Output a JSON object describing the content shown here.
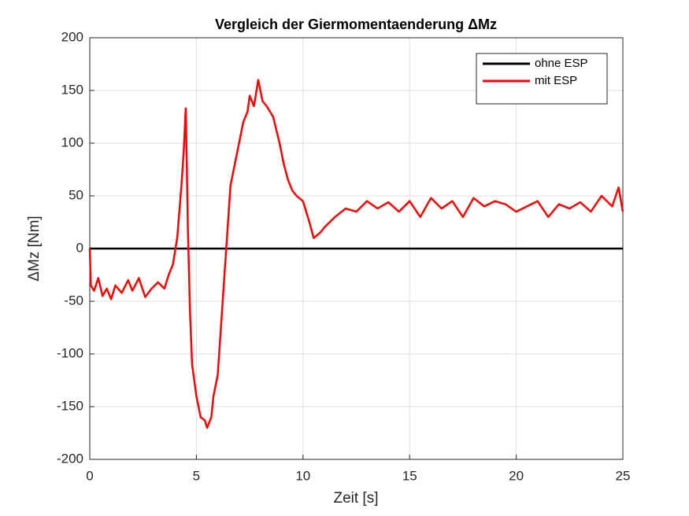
{
  "chart_data": {
    "type": "line",
    "title": "Vergleich der Giermomentaenderung ΔMz",
    "xlabel": "Zeit [s]",
    "ylabel": "ΔMz [Nm]",
    "xlim": [
      0,
      25
    ],
    "xticks": [
      0,
      5,
      10,
      15,
      20,
      25
    ],
    "ylim": [
      -200,
      200
    ],
    "yticks": [
      -200,
      -150,
      -100,
      -50,
      0,
      50,
      100,
      150,
      200
    ],
    "grid": true,
    "legend": "upper right",
    "series": [
      {
        "name": "ohne ESP",
        "color": "#000000",
        "x": [
          0,
          25
        ],
        "values": [
          0,
          0
        ]
      },
      {
        "name": "mit ESP",
        "color": "#ff0000",
        "x": [
          0,
          0.05,
          0.2,
          0.4,
          0.6,
          0.8,
          1.0,
          1.2,
          1.5,
          1.8,
          2.0,
          2.3,
          2.6,
          2.9,
          3.2,
          3.5,
          3.7,
          3.9,
          4.1,
          4.3,
          4.4,
          4.5,
          4.55,
          4.6,
          4.7,
          4.8,
          5.0,
          5.2,
          5.4,
          5.5,
          5.7,
          5.8,
          6.0,
          6.2,
          6.4,
          6.6,
          6.8,
          7.0,
          7.2,
          7.4,
          7.5,
          7.7,
          7.9,
          8.1,
          8.3,
          8.6,
          8.9,
          9.1,
          9.3,
          9.5,
          9.7,
          10.0,
          10.3,
          10.5,
          10.8,
          11.0,
          11.5,
          12.0,
          12.5,
          13.0,
          13.5,
          14.0,
          14.5,
          15.0,
          15.5,
          16.0,
          16.5,
          17.0,
          17.5,
          18.0,
          18.5,
          19.0,
          19.5,
          20.0,
          20.5,
          21.0,
          21.5,
          22.0,
          22.5,
          23.0,
          23.5,
          24.0,
          24.5,
          24.8,
          25.0
        ],
        "values": [
          0,
          -35,
          -40,
          -28,
          -45,
          -38,
          -48,
          -35,
          -42,
          -30,
          -40,
          -28,
          -46,
          -38,
          -32,
          -38,
          -25,
          -15,
          10,
          60,
          90,
          133,
          80,
          20,
          -60,
          -110,
          -140,
          -160,
          -163,
          -170,
          -160,
          -140,
          -120,
          -60,
          0,
          60,
          80,
          100,
          120,
          130,
          145,
          135,
          160,
          140,
          135,
          125,
          100,
          80,
          65,
          55,
          50,
          45,
          25,
          10,
          15,
          20,
          30,
          38,
          35,
          45,
          38,
          44,
          35,
          45,
          30,
          48,
          38,
          45,
          30,
          48,
          40,
          45,
          42,
          35,
          40,
          45,
          30,
          42,
          38,
          44,
          35,
          50,
          40,
          58,
          35
        ]
      }
    ]
  }
}
